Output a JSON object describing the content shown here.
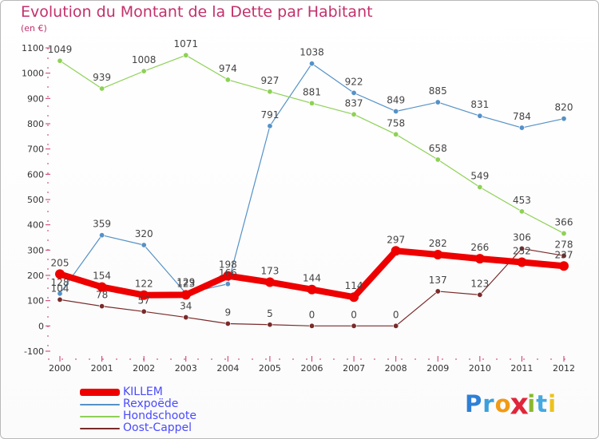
{
  "title": "Evolution du Montant de la Dette par Habitant",
  "subtitle": "(en €)",
  "chart_data": {
    "type": "line",
    "title": "Evolution du Montant de la Dette par Habitant",
    "subtitle": "(en €)",
    "xlabel": "",
    "ylabel": "",
    "x": [
      "2000",
      "2001",
      "2002",
      "2003",
      "2004",
      "2005",
      "2006",
      "2007",
      "2008",
      "2009",
      "2010",
      "2011",
      "2012"
    ],
    "ylim": [
      -100,
      1100
    ],
    "yticks": [
      "-100",
      "0",
      "100",
      "200",
      "300",
      "400",
      "500",
      "600",
      "700",
      "800",
      "900",
      "1000",
      "1100"
    ],
    "grid": "off",
    "legend": "bottom-left",
    "series": [
      {
        "name": "KILLEM",
        "color": "#ee0000",
        "values": [
          205,
          154,
          122,
          123,
          198,
          173,
          144,
          114,
          297,
          282,
          266,
          252,
          237
        ],
        "labels": [
          "205",
          "154",
          "122",
          "123",
          "198",
          "173",
          "144",
          "114",
          "297",
          "282",
          "266",
          "252",
          "237"
        ]
      },
      {
        "name": "Rexpoëde",
        "color": "#5591c7",
        "values": [
          128,
          359,
          320,
          129,
          166,
          791,
          1038,
          922,
          849,
          885,
          831,
          784,
          820
        ],
        "labels": [
          "128",
          "359",
          "320",
          "129",
          "166",
          "791",
          "1038",
          "922",
          "849",
          "885",
          "831",
          "784",
          "820"
        ]
      },
      {
        "name": "Hondschoote",
        "color": "#8ed156",
        "values": [
          1049,
          939,
          1008,
          1071,
          974,
          927,
          881,
          837,
          758,
          658,
          549,
          453,
          366
        ],
        "labels": [
          "1049",
          "939",
          "1008",
          "1071",
          "974",
          "927",
          "881",
          "837",
          "758",
          "658",
          "549",
          "453",
          "366"
        ]
      },
      {
        "name": "Oost-Cappel",
        "color": "#7a2a2a",
        "values": [
          104,
          78,
          57,
          34,
          9,
          5,
          0,
          0,
          0,
          137,
          123,
          306,
          278
        ],
        "labels": [
          "104",
          "78",
          "57",
          "34",
          "9",
          "5",
          "0",
          "0",
          "0",
          "137",
          "123",
          "306",
          "278"
        ]
      }
    ]
  },
  "logo": {
    "letters": [
      "P",
      "r",
      "o",
      "x",
      "i",
      "t",
      "i"
    ],
    "colors": [
      "#2e7fd6",
      "#3aa0dc",
      "#f19a14",
      "#e0263a",
      "#8ab82e",
      "#44a9e0",
      "#ecc21c"
    ]
  }
}
